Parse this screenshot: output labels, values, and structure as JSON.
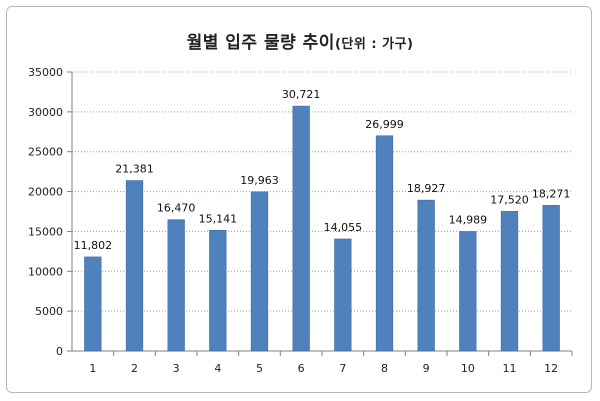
{
  "chart_data": {
    "type": "bar",
    "title": "월별 입주 물량 추이",
    "title_unit": "(단위 : 가구)",
    "categories": [
      "1",
      "2",
      "3",
      "4",
      "5",
      "6",
      "7",
      "8",
      "9",
      "10",
      "11",
      "12"
    ],
    "values": [
      11802,
      21381,
      16470,
      15141,
      19963,
      30721,
      14055,
      26999,
      18927,
      14989,
      17520,
      18271
    ],
    "value_labels": [
      "11,802",
      "21,381",
      "16,470",
      "15,141",
      "19,963",
      "30,721",
      "14,055",
      "26,999",
      "18,927",
      "14,989",
      "17,520",
      "18,271"
    ],
    "y_ticks": [
      "0",
      "5000",
      "10000",
      "15000",
      "20000",
      "25000",
      "30000",
      "35000"
    ],
    "ylim": [
      0,
      35000
    ],
    "grid": "horizontal-dotted",
    "legend": "none",
    "colors": {
      "bar": "#4f81bd",
      "bar_edge": "#3f6a9e",
      "grid": "#9a9a9a",
      "axis": "#808080"
    }
  }
}
